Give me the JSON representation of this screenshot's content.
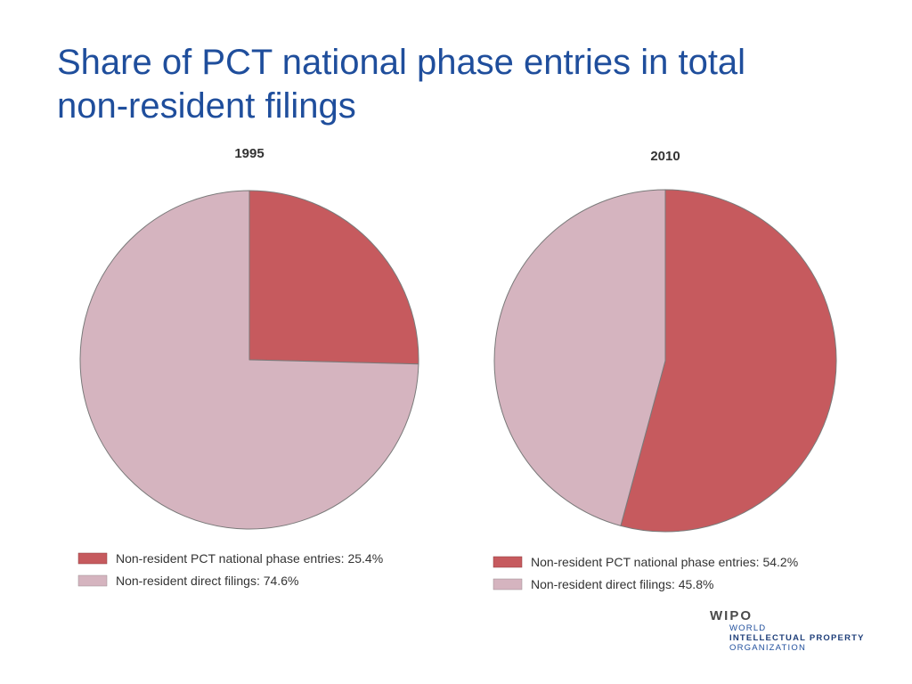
{
  "slide": {
    "title_line1": "Share of PCT national phase entries in total",
    "title_line2": "non-resident filings"
  },
  "colors": {
    "title": "#1f4e9c",
    "pct": "#c65a5e",
    "direct": "#d5b4bf",
    "edge": "#7a7a7a"
  },
  "chart_data": [
    {
      "type": "pie",
      "title": "1995",
      "slices": [
        {
          "label": "Non-resident PCT national phase entries: 25.4%",
          "value": 25.4,
          "color": "#c65a5e"
        },
        {
          "label": "Non-resident direct filings: 74.6%",
          "value": 74.6,
          "color": "#d5b4bf"
        }
      ],
      "start": "12 o'clock",
      "direction": "clockwise",
      "legend_position": "bottom"
    },
    {
      "type": "pie",
      "title": "2010",
      "slices": [
        {
          "label": "Non-resident PCT national phase entries: 54.2%",
          "value": 54.2,
          "color": "#c65a5e"
        },
        {
          "label": "Non-resident direct filings: 45.8%",
          "value": 45.8,
          "color": "#d5b4bf"
        }
      ],
      "start": "12 o'clock",
      "direction": "clockwise",
      "legend_position": "bottom"
    }
  ],
  "logo": {
    "name": "WIPO",
    "line1": "WORLD",
    "line2": "INTELLECTUAL PROPERTY",
    "line3": "ORGANIZATION"
  }
}
